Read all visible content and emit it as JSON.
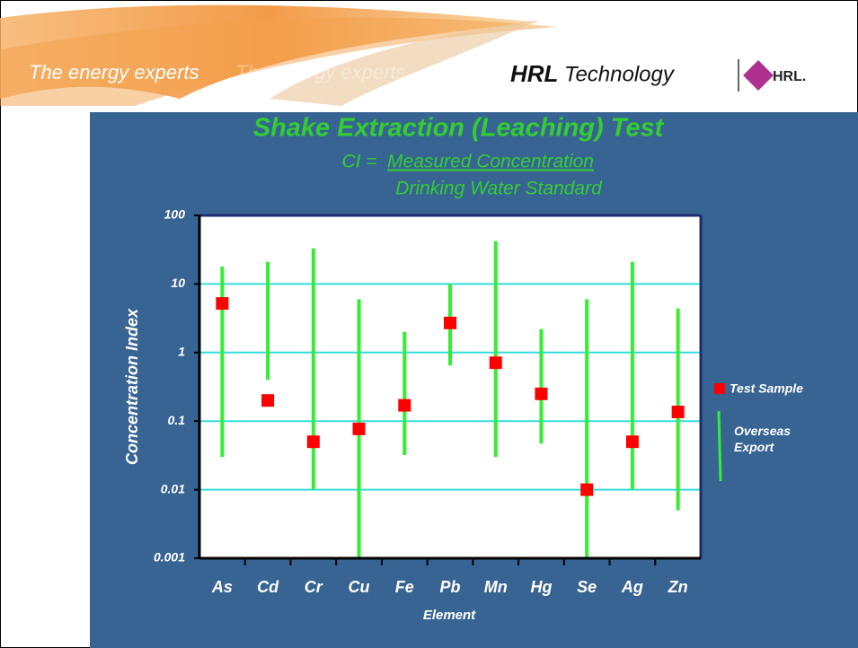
{
  "header": {
    "taglines": [
      "The energy experts",
      "The energy experts"
    ],
    "logo_bold": "HRL",
    "logo_light": "Technology",
    "logo_badge": "HRL."
  },
  "chart_data": {
    "type": "range_scatter",
    "title": "Shake Extraction (Leaching) Test",
    "subtitle_lhs": "CI =",
    "subtitle_numerator": "Measured Concentration",
    "subtitle_denominator": "Drinking Water Standard",
    "x_label": "Element",
    "y_label": "Concentration Index",
    "categories": [
      "As",
      "Cd",
      "Cr",
      "Cu",
      "Fe",
      "Pb",
      "Mn",
      "Hg",
      "Se",
      "Ag",
      "Zn"
    ],
    "series": [
      {
        "name": "Test Sample",
        "color": "#ff0000",
        "values": [
          5.2,
          0.2,
          0.05,
          0.077,
          0.17,
          2.7,
          0.71,
          0.25,
          0.01,
          0.05,
          0.136
        ]
      },
      {
        "name": "Overseas Export",
        "color": "#33ee33",
        "low": [
          0.03,
          0.4,
          0.01,
          0.001,
          0.032,
          0.65,
          0.03,
          0.047,
          0.001,
          0.01,
          0.005
        ],
        "high": [
          18,
          21,
          33,
          6,
          2,
          10,
          42,
          2.2,
          6,
          21,
          4.4
        ]
      }
    ],
    "ylim": [
      0.001,
      100
    ],
    "yticks": [
      100,
      10,
      1,
      0.1,
      0.01,
      0.001
    ],
    "log_y": true,
    "grid": true,
    "grid_color": "#33dddd",
    "legend": "right"
  }
}
